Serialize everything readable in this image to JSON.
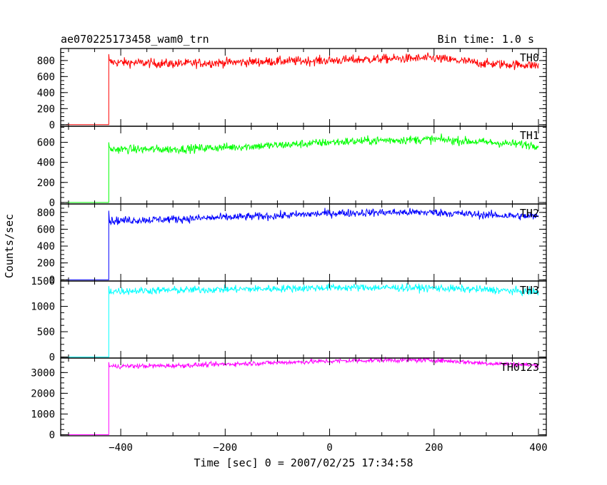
{
  "chart_data": {
    "type": "line",
    "title": "ae070225173458_wam0_trn",
    "subtitle": "Bin time: 1.0 s",
    "xlabel": "Time [sec] 0 = 2007/02/25 17:34:58",
    "ylabel": "Counts/sec",
    "xlim": [
      -515,
      415
    ],
    "xticks": [
      -400,
      -200,
      0,
      200,
      400
    ],
    "xtick_labels": [
      "−400",
      "−200",
      "0",
      "200",
      "400"
    ],
    "grid": false,
    "legend": "none",
    "onset_x": -423,
    "x_start": -505,
    "x_end": 400,
    "panels": [
      {
        "name": "TH0",
        "color": "#ff0000",
        "ylim": [
          -20,
          950
        ],
        "yticks": [
          0,
          200,
          400,
          600,
          800
        ],
        "ytick_labels": [
          "0",
          "200",
          "400",
          "600",
          "800"
        ],
        "baseline": 0,
        "level": [
          [
            -423,
            780
          ],
          [
            -300,
            760
          ],
          [
            -100,
            790
          ],
          [
            0,
            800
          ],
          [
            100,
            820
          ],
          [
            200,
            830
          ],
          [
            300,
            760
          ],
          [
            400,
            740
          ]
        ],
        "noise": 55,
        "spike": 880
      },
      {
        "name": "TH1",
        "color": "#00ff00",
        "ylim": [
          -15,
          760
        ],
        "yticks": [
          0,
          200,
          400,
          600
        ],
        "ytick_labels": [
          "0",
          "200",
          "400",
          "600"
        ],
        "baseline": 0,
        "level": [
          [
            -423,
            530
          ],
          [
            -300,
            530
          ],
          [
            -100,
            570
          ],
          [
            0,
            600
          ],
          [
            100,
            620
          ],
          [
            200,
            630
          ],
          [
            300,
            600
          ],
          [
            400,
            570
          ]
        ],
        "noise": 40,
        "spike": 600
      },
      {
        "name": "TH2",
        "color": "#0000ff",
        "ylim": [
          -15,
          900
        ],
        "yticks": [
          0,
          200,
          400,
          600,
          800
        ],
        "ytick_labels": [
          "0",
          "200",
          "400",
          "600",
          "800"
        ],
        "baseline": 0,
        "level": [
          [
            -423,
            700
          ],
          [
            -300,
            720
          ],
          [
            -100,
            760
          ],
          [
            0,
            790
          ],
          [
            100,
            800
          ],
          [
            200,
            800
          ],
          [
            300,
            770
          ],
          [
            400,
            750
          ]
        ],
        "noise": 45,
        "spike": 820
      },
      {
        "name": "TH3",
        "color": "#00ffff",
        "ylim": [
          -20,
          1500
        ],
        "yticks": [
          0,
          500,
          1000,
          1500
        ],
        "ytick_labels": [
          "0",
          "500",
          "1000",
          "1500"
        ],
        "baseline": 0,
        "level": [
          [
            -423,
            1300
          ],
          [
            -300,
            1320
          ],
          [
            -100,
            1350
          ],
          [
            0,
            1370
          ],
          [
            100,
            1370
          ],
          [
            200,
            1360
          ],
          [
            300,
            1330
          ],
          [
            400,
            1280
          ]
        ],
        "noise": 70,
        "spike": 1400
      },
      {
        "name": "TH0123",
        "color": "#ff00ff",
        "ylim": [
          -50,
          3700
        ],
        "yticks": [
          0,
          1000,
          2000,
          3000
        ],
        "ytick_labels": [
          "0",
          "1000",
          "2000",
          "3000"
        ],
        "baseline": 0,
        "level": [
          [
            -423,
            3300
          ],
          [
            -300,
            3330
          ],
          [
            -100,
            3480
          ],
          [
            0,
            3550
          ],
          [
            100,
            3600
          ],
          [
            200,
            3600
          ],
          [
            300,
            3450
          ],
          [
            400,
            3350
          ]
        ],
        "noise": 110,
        "spike": 3500
      }
    ]
  }
}
